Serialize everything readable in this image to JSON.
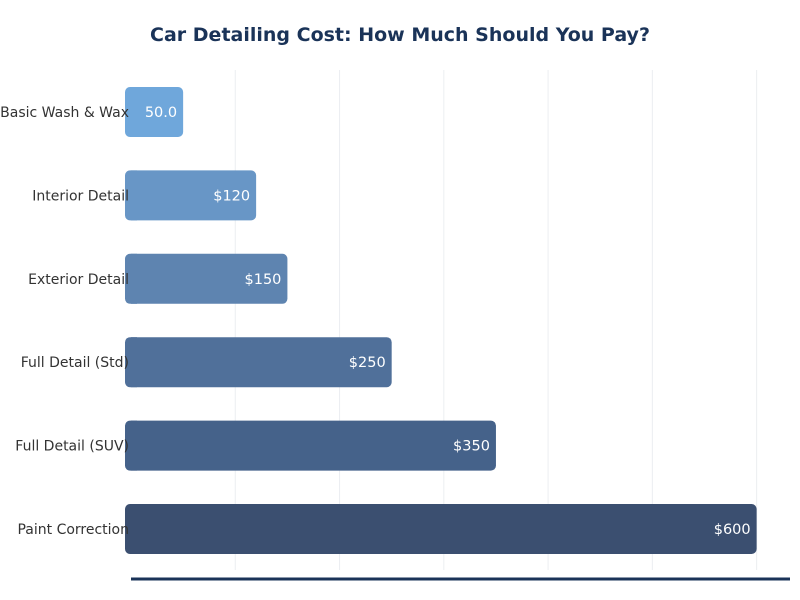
{
  "chart_data": {
    "type": "bar",
    "orientation": "horizontal",
    "title": "Car Detailing Cost: How Much Should You Pay?",
    "categories": [
      "Basic Wash & Wax",
      "Interior Detail",
      "Exterior Detail",
      "Full Detail (Std)",
      "Full Detail (SUV)",
      "Paint Correction"
    ],
    "values": [
      50,
      120,
      150,
      250,
      350,
      600
    ],
    "data_labels": [
      "50.0",
      "$120",
      "$150",
      "$250",
      "$350",
      "$600"
    ],
    "colors": [
      "#6fa7db",
      "#6896c6",
      "#5e84b0",
      "#50709a",
      "#45628a",
      "#3b4f70"
    ],
    "axis_color": "#1a3358",
    "xlim": [
      0,
      632
    ],
    "grid": true,
    "gridlines_at": [
      100,
      200,
      300,
      400,
      500,
      600
    ],
    "xlabel": "",
    "ylabel": ""
  }
}
